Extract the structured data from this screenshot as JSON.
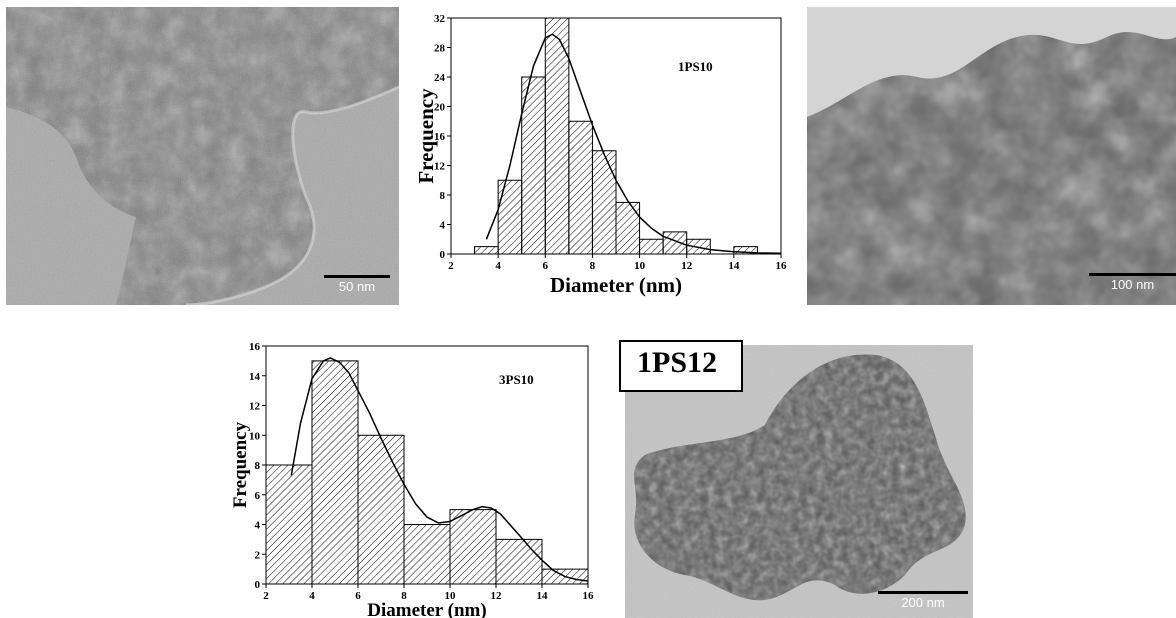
{
  "panels": {
    "tem_1": {
      "scale_label": "50 nm"
    },
    "tem_2": {
      "scale_label": "100 nm"
    },
    "tem_3": {
      "scale_label": "200 nm",
      "sample_label": "1PS12"
    }
  },
  "chart_data": [
    {
      "type": "bar",
      "title": "1PS10",
      "xlabel": "Diameter (nm)",
      "ylabel": "Frequency",
      "xlim": [
        2,
        16
      ],
      "ylim": [
        0,
        32
      ],
      "xticks": [
        2,
        4,
        6,
        8,
        10,
        12,
        14,
        16
      ],
      "yticks": [
        0,
        4,
        8,
        12,
        16,
        20,
        24,
        28,
        32
      ],
      "bins": [
        {
          "x0": 3,
          "x1": 4,
          "value": 1
        },
        {
          "x0": 4,
          "x1": 5,
          "value": 10
        },
        {
          "x0": 5,
          "x1": 6,
          "value": 24
        },
        {
          "x0": 6,
          "x1": 7,
          "value": 32
        },
        {
          "x0": 7,
          "x1": 8,
          "value": 18
        },
        {
          "x0": 8,
          "x1": 9,
          "value": 14
        },
        {
          "x0": 9,
          "x1": 10,
          "value": 7
        },
        {
          "x0": 10,
          "x1": 11,
          "value": 2
        },
        {
          "x0": 11,
          "x1": 12,
          "value": 3
        },
        {
          "x0": 12,
          "x1": 13,
          "value": 2
        },
        {
          "x0": 13,
          "x1": 14,
          "value": 0
        },
        {
          "x0": 14,
          "x1": 15,
          "value": 1
        }
      ],
      "fit_curve": {
        "x": [
          3.5,
          4,
          4.5,
          5,
          5.5,
          6,
          6.3,
          6.6,
          7,
          7.5,
          8,
          8.5,
          9,
          9.5,
          10,
          10.5,
          11,
          12,
          13,
          14,
          15,
          16
        ],
        "y": [
          2,
          6,
          12,
          19,
          25.5,
          29.3,
          29.8,
          29.1,
          26.5,
          22,
          17.5,
          13.5,
          10,
          7.2,
          5,
          3.5,
          2.4,
          1.2,
          0.6,
          0.3,
          0.15,
          0.1
        ]
      },
      "grid": false
    },
    {
      "type": "bar",
      "title": "3PS10",
      "xlabel": "Diameter (nm)",
      "ylabel": "Frequency",
      "xlim": [
        2,
        16
      ],
      "ylim": [
        0,
        16
      ],
      "xticks": [
        2,
        4,
        6,
        8,
        10,
        12,
        14,
        16
      ],
      "yticks": [
        0,
        2,
        4,
        6,
        8,
        10,
        12,
        14,
        16
      ],
      "bins": [
        {
          "x0": 2,
          "x1": 4,
          "value": 8
        },
        {
          "x0": 4,
          "x1": 6,
          "value": 15
        },
        {
          "x0": 6,
          "x1": 8,
          "value": 10
        },
        {
          "x0": 8,
          "x1": 10,
          "value": 4
        },
        {
          "x0": 10,
          "x1": 12,
          "value": 5
        },
        {
          "x0": 12,
          "x1": 14,
          "value": 3
        },
        {
          "x0": 14,
          "x1": 16,
          "value": 1
        }
      ],
      "fit_curve": {
        "x": [
          3.1,
          3.5,
          4,
          4.5,
          4.8,
          5.2,
          5.6,
          6,
          6.5,
          7,
          7.5,
          8,
          8.5,
          9,
          9.5,
          10,
          10.5,
          11,
          11.4,
          11.8,
          12.2,
          12.6,
          13,
          13.5,
          14,
          14.5,
          15,
          15.5,
          16
        ],
        "y": [
          7.3,
          10.8,
          13.8,
          15.0,
          15.2,
          14.9,
          14.2,
          13.0,
          11.5,
          9.8,
          8.2,
          6.7,
          5.4,
          4.5,
          4.1,
          4.2,
          4.6,
          5.0,
          5.2,
          5.1,
          4.7,
          4.0,
          3.3,
          2.4,
          1.6,
          0.9,
          0.5,
          0.3,
          0.2
        ]
      },
      "grid": false
    }
  ]
}
